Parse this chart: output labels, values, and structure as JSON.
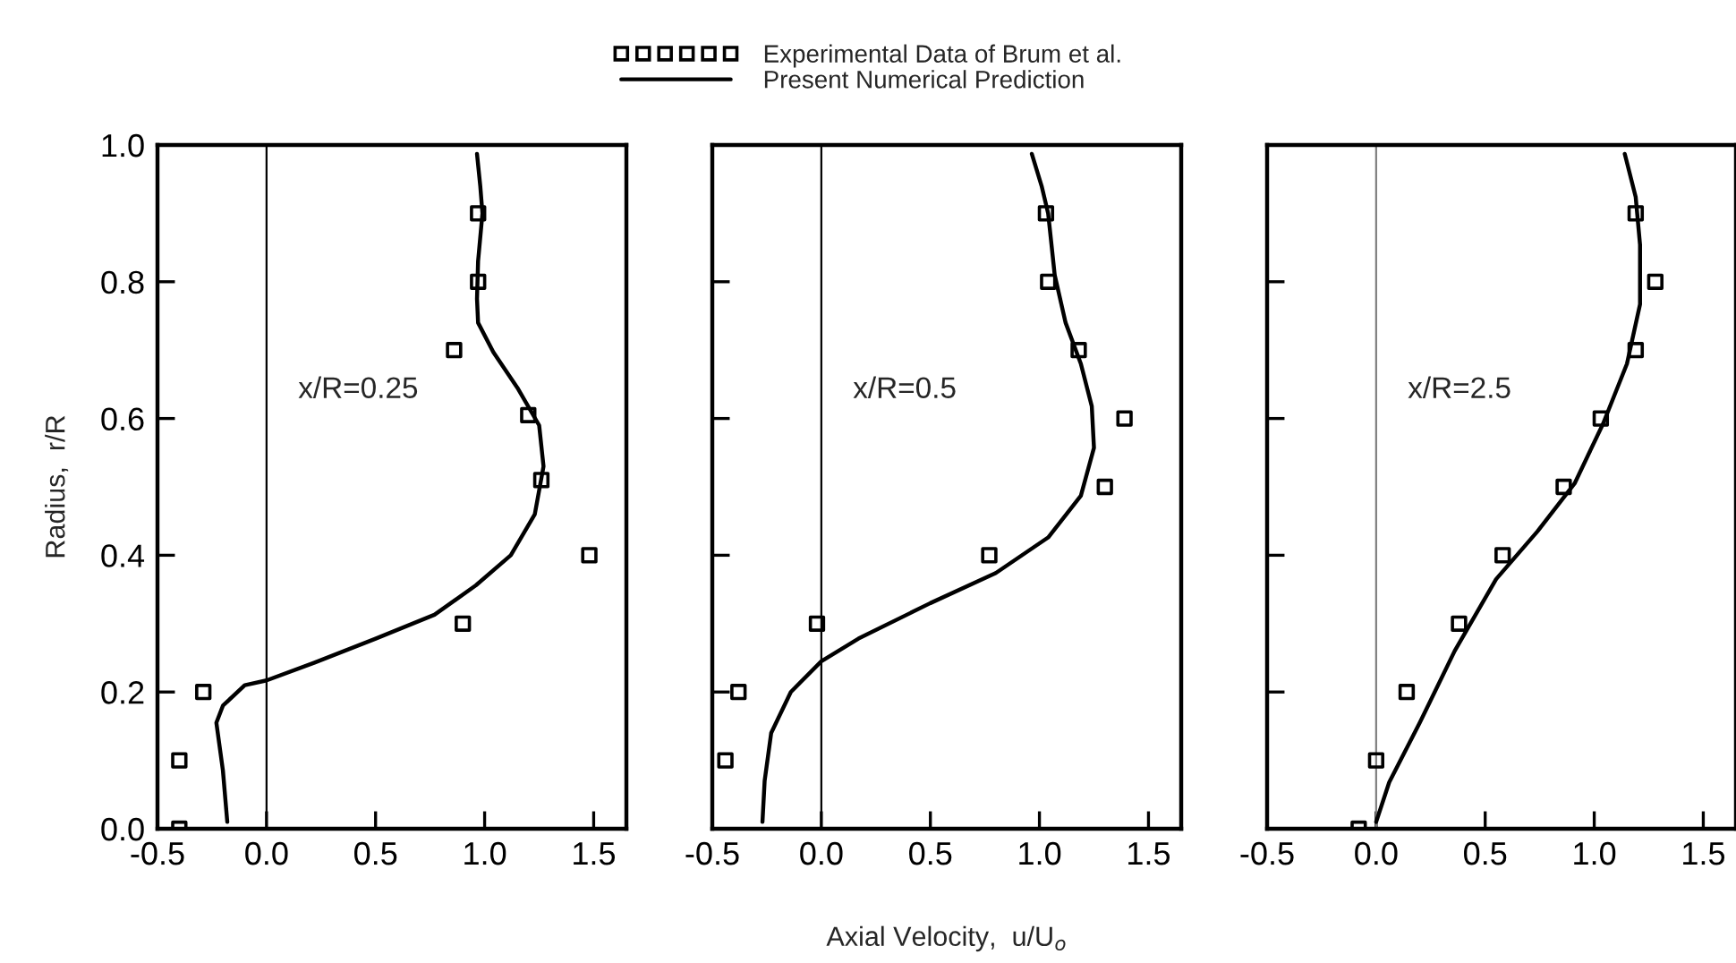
{
  "chart_data": [
    {
      "type": "scatter",
      "ylabel": "Radius,  r/R",
      "annotations": [
        "x/R=0.25"
      ],
      "xlim": [
        -0.5,
        1.65
      ],
      "ylim": [
        0,
        1.0
      ],
      "xticks": [
        {
          "value": -0.5,
          "label": "-0.5"
        },
        {
          "value": 0,
          "label": "0.0"
        },
        {
          "value": 0.5,
          "label": "0.5"
        },
        {
          "value": 1.0,
          "label": "1.0"
        },
        {
          "value": 1.5,
          "label": "1.5"
        }
      ],
      "yticks": [
        {
          "value": 0,
          "label": "0.0"
        },
        {
          "value": 0.2,
          "label": "0.2"
        },
        {
          "value": 0.4,
          "label": "0.4"
        },
        {
          "value": 0.6,
          "label": "0.6"
        },
        {
          "value": 0.8,
          "label": "0.8"
        },
        {
          "value": 1.0,
          "label": "1.0"
        }
      ],
      "grid": false,
      "legend": "top",
      "ref_lines": [
        {
          "axis": "x",
          "value": 0,
          "color": "#000000"
        }
      ],
      "series": [
        {
          "name": "Experimental Data of Brum et al.",
          "marker": "square",
          "color": "#000000",
          "x": [
            -0.4,
            -0.4,
            -0.29,
            0.9,
            1.48,
            1.26,
            1.2,
            0.86,
            0.97,
            0.97
          ],
          "values": [
            0.0,
            0.1,
            0.2,
            0.3,
            0.4,
            0.51,
            0.605,
            0.7,
            0.8,
            0.9
          ]
        },
        {
          "name": "Present Numerical Prediction",
          "type": "line",
          "marker": "none",
          "line_style": "solid",
          "color": "#000000",
          "x": [
            -0.18,
            -0.2,
            -0.23,
            -0.2,
            -0.1,
            0.0,
            0.22,
            0.5,
            0.77,
            0.96,
            1.12,
            1.23,
            1.27,
            1.25,
            1.15,
            1.04,
            0.97,
            0.965,
            0.97,
            0.99,
            0.98,
            0.965
          ],
          "values": [
            0.01,
            0.085,
            0.155,
            0.18,
            0.21,
            0.217,
            0.243,
            0.278,
            0.313,
            0.356,
            0.4,
            0.46,
            0.53,
            0.59,
            0.645,
            0.697,
            0.74,
            0.775,
            0.83,
            0.9,
            0.94,
            0.987
          ]
        }
      ]
    },
    {
      "type": "scatter",
      "xlabel": "Axial Velocity,  u/U$_{o}$",
      "annotations": [
        "x/R=0.5"
      ],
      "xlim": [
        -0.5,
        1.65
      ],
      "ylim": [
        0,
        1.0
      ],
      "xticks": [
        {
          "value": -0.5,
          "label": "-0.5"
        },
        {
          "value": 0,
          "label": "0.0"
        },
        {
          "value": 0.5,
          "label": "0.5"
        },
        {
          "value": 1.0,
          "label": "1.0"
        },
        {
          "value": 1.5,
          "label": "1.5"
        }
      ],
      "yticks": [
        {
          "value": 0,
          "label": null
        },
        {
          "value": 0.2,
          "label": null
        },
        {
          "value": 0.4,
          "label": null
        },
        {
          "value": 0.6,
          "label": null
        },
        {
          "value": 0.8,
          "label": null
        },
        {
          "value": 1.0,
          "label": null
        }
      ],
      "tick_labels": "x",
      "grid": false,
      "ref_lines": [
        {
          "axis": "x",
          "value": 0,
          "color": "#000000"
        }
      ],
      "series": [
        {
          "marker": "square",
          "color": "#000000",
          "x": [
            -0.44,
            -0.38,
            -0.02,
            0.77,
            1.3,
            1.39,
            1.18,
            1.04,
            1.03
          ],
          "values": [
            0.1,
            0.2,
            0.3,
            0.4,
            0.5,
            0.6,
            0.7,
            0.8,
            0.9
          ]
        },
        {
          "type": "line",
          "marker": "none",
          "line_style": "solid",
          "color": "#000000",
          "x": [
            -0.27,
            -0.26,
            -0.23,
            -0.14,
            0.0,
            0.17,
            0.5,
            0.8,
            1.04,
            1.19,
            1.25,
            1.24,
            1.19,
            1.12,
            1.07,
            1.04,
            1.01,
            0.965
          ],
          "values": [
            0.01,
            0.07,
            0.14,
            0.2,
            0.245,
            0.278,
            0.33,
            0.374,
            0.426,
            0.487,
            0.557,
            0.618,
            0.68,
            0.74,
            0.81,
            0.9,
            0.94,
            0.987
          ]
        }
      ]
    },
    {
      "type": "scatter",
      "annotations": [
        "x/R=2.5"
      ],
      "xlim": [
        -0.5,
        1.65
      ],
      "ylim": [
        0,
        1.0
      ],
      "xticks": [
        {
          "value": -0.5,
          "label": "-0.5"
        },
        {
          "value": 0,
          "label": "0.0"
        },
        {
          "value": 0.5,
          "label": "0.5"
        },
        {
          "value": 1.0,
          "label": "1.0"
        },
        {
          "value": 1.5,
          "label": "1.5"
        }
      ],
      "yticks": [
        {
          "value": 0,
          "label": null
        },
        {
          "value": 0.2,
          "label": null
        },
        {
          "value": 0.4,
          "label": null
        },
        {
          "value": 0.6,
          "label": null
        },
        {
          "value": 0.8,
          "label": null
        },
        {
          "value": 1.0,
          "label": null
        }
      ],
      "tick_labels": "x",
      "grid": false,
      "ref_lines": [
        {
          "axis": "x",
          "value": 0,
          "color": "#808080"
        }
      ],
      "series": [
        {
          "marker": "square",
          "color": "#000000",
          "x": [
            -0.08,
            0.0,
            0.14,
            0.38,
            0.58,
            0.86,
            1.03,
            1.19,
            1.28,
            1.19
          ],
          "values": [
            0.0,
            0.1,
            0.2,
            0.3,
            0.4,
            0.5,
            0.6,
            0.7,
            0.8,
            0.9
          ]
        },
        {
          "type": "line",
          "marker": "none",
          "line_style": "solid",
          "color": "#000000",
          "x": [
            0.0,
            0.06,
            0.2,
            0.36,
            0.55,
            0.74,
            0.91,
            1.04,
            1.15,
            1.21,
            1.21,
            1.19,
            1.14
          ],
          "values": [
            0.01,
            0.068,
            0.155,
            0.26,
            0.365,
            0.435,
            0.505,
            0.592,
            0.68,
            0.767,
            0.854,
            0.924,
            0.987
          ]
        }
      ]
    }
  ]
}
